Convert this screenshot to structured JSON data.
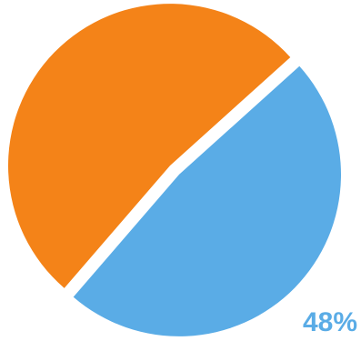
{
  "chart_data": {
    "type": "pie",
    "title": "",
    "slices": [
      {
        "value": 52,
        "color": "#f48318",
        "data_label": ""
      },
      {
        "value": 48,
        "color": "#5aace6",
        "data_label": "48%"
      }
    ],
    "exploded": true,
    "legend": "none"
  }
}
